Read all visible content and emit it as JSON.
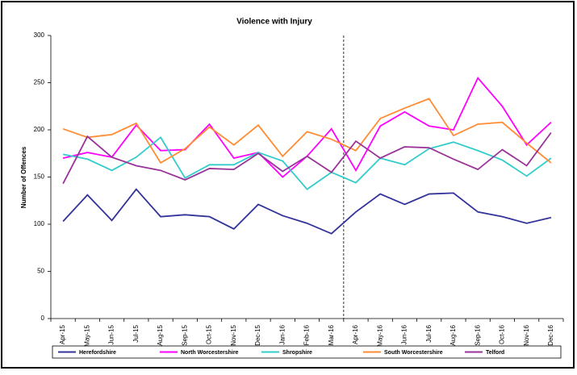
{
  "chart_data": {
    "type": "line",
    "title": "Violence with Injury",
    "y_label": "Number of Offences",
    "categories": [
      "Apr-15",
      "May-15",
      "Jun-15",
      "Jul-15",
      "Aug-15",
      "Sep-15",
      "Oct-15",
      "Nov-15",
      "Dec-15",
      "Jan-16",
      "Feb-16",
      "Mar-16",
      "Apr-16",
      "May-16",
      "Jun-16",
      "Jul-16",
      "Aug-16",
      "Sep-16",
      "Oct-16",
      "Nov-16",
      "Dec-16"
    ],
    "series": [
      {
        "name": "Herefordshire",
        "color": "#333399",
        "values": [
          103,
          131,
          104,
          137,
          108,
          110,
          108,
          95,
          121,
          109,
          101,
          90,
          113,
          132,
          121,
          132,
          133,
          113,
          108,
          101,
          107
        ]
      },
      {
        "name": "North Worcestershire",
        "color": "#ff00ff",
        "values": [
          170,
          176,
          171,
          205,
          178,
          179,
          206,
          170,
          176,
          150,
          172,
          201,
          157,
          204,
          219,
          204,
          200,
          255,
          225,
          184,
          208
        ]
      },
      {
        "name": "Shropshire",
        "color": "#33cccc",
        "values": [
          174,
          169,
          157,
          171,
          192,
          149,
          163,
          163,
          176,
          167,
          137,
          155,
          144,
          170,
          163,
          180,
          187,
          178,
          168,
          151,
          170
        ]
      },
      {
        "name": "South Worcestershire",
        "color": "#ff8c33",
        "values": [
          201,
          192,
          195,
          207,
          165,
          180,
          203,
          184,
          205,
          172,
          198,
          190,
          178,
          212,
          223,
          233,
          194,
          206,
          208,
          186,
          165
        ]
      },
      {
        "name": "Telford",
        "color": "#993399",
        "values": [
          143,
          193,
          171,
          162,
          157,
          147,
          159,
          158,
          175,
          156,
          172,
          155,
          188,
          170,
          182,
          181,
          169,
          158,
          179,
          162,
          197
        ]
      }
    ],
    "ylim": [
      0,
      300
    ],
    "yticks": [
      0,
      50,
      100,
      150,
      200,
      250,
      300
    ],
    "grid": false
  }
}
